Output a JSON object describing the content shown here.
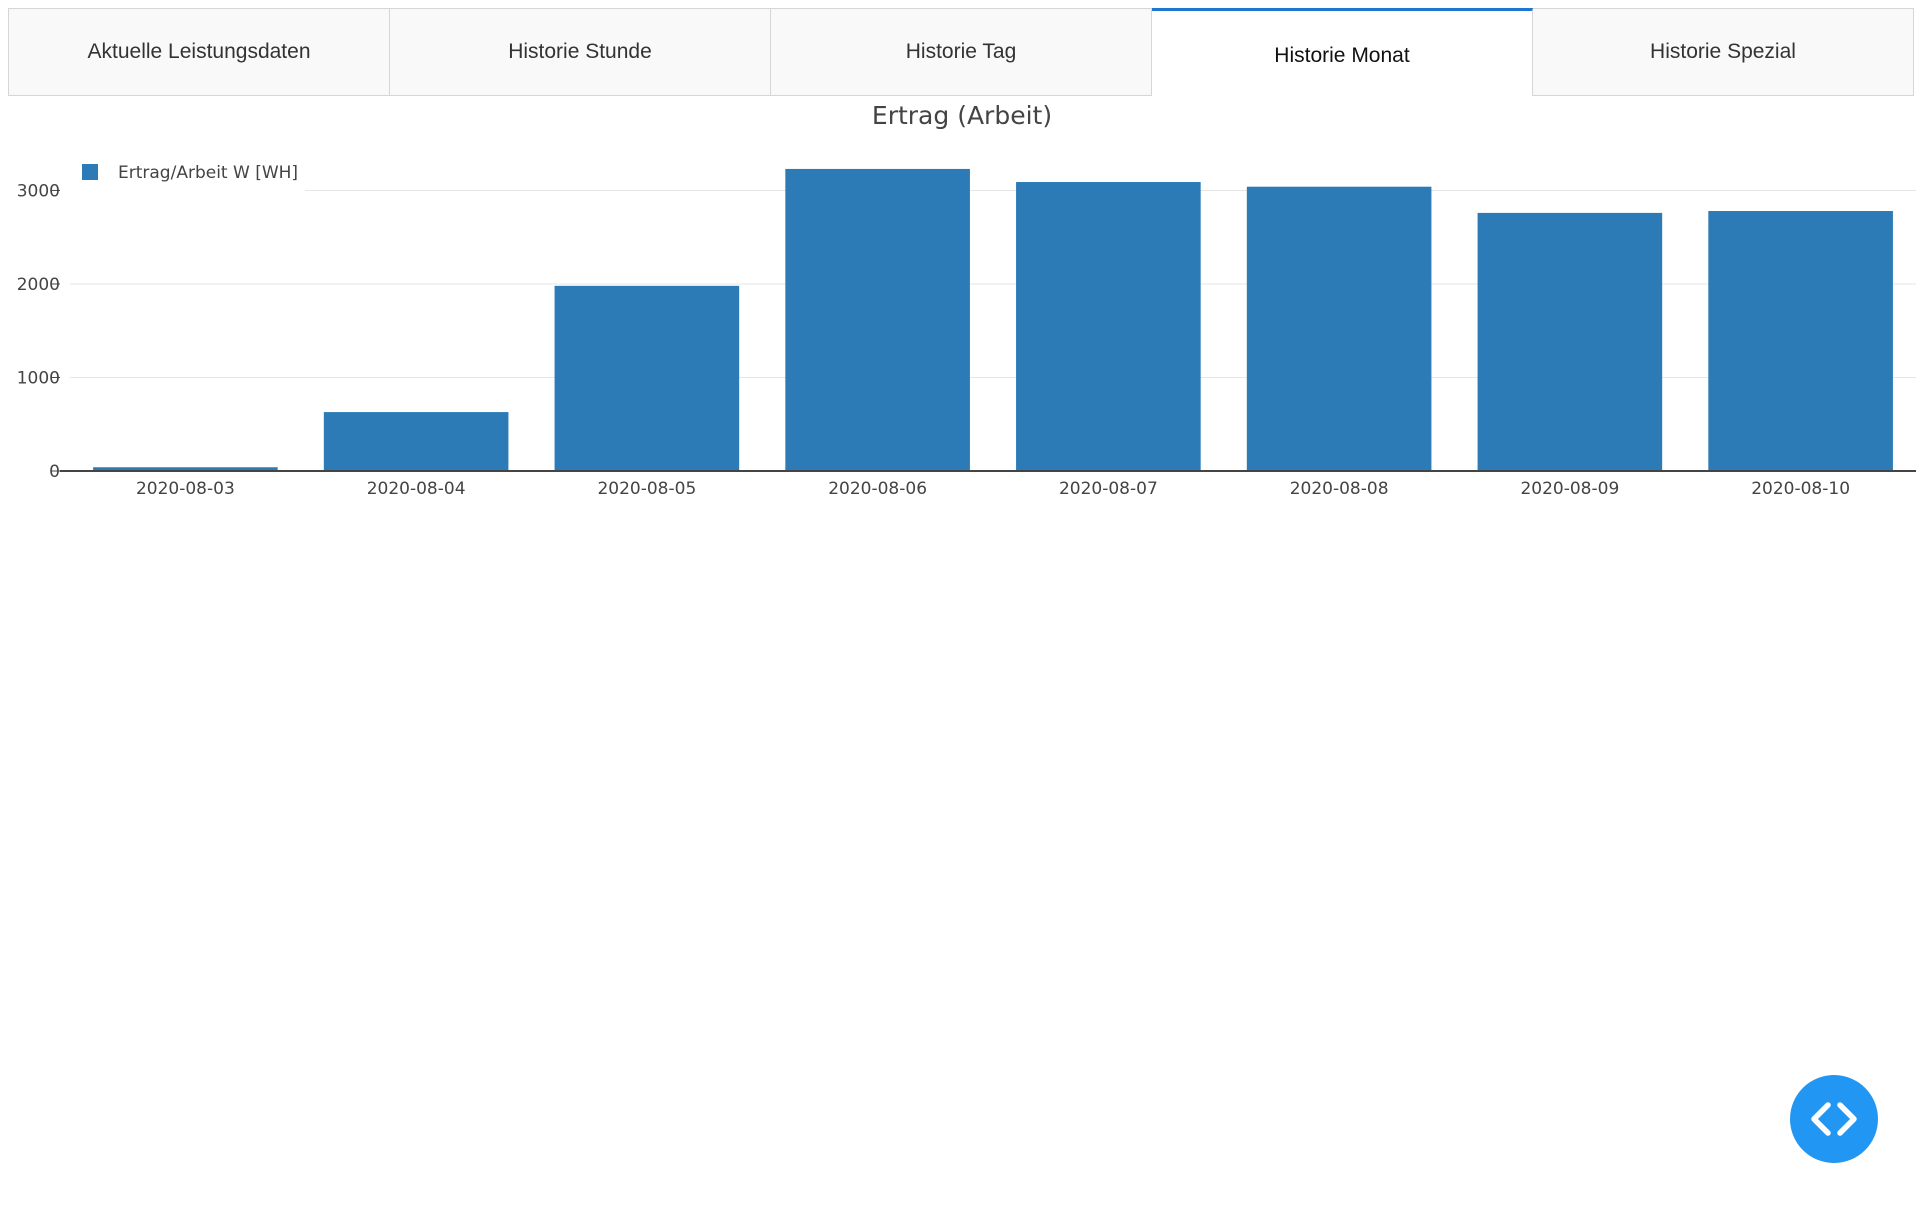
{
  "tabs": [
    {
      "label": "Aktuelle Leistungsdaten",
      "active": false
    },
    {
      "label": "Historie Stunde",
      "active": false
    },
    {
      "label": "Historie Tag",
      "active": false
    },
    {
      "label": "Historie Monat",
      "active": true
    },
    {
      "label": "Historie Spezial",
      "active": false
    }
  ],
  "chart_data": {
    "type": "bar",
    "title": "Ertrag (Arbeit)",
    "xlabel": "",
    "ylabel": "",
    "categories": [
      "2020-08-03",
      "2020-08-04",
      "2020-08-05",
      "2020-08-06",
      "2020-08-07",
      "2020-08-08",
      "2020-08-09",
      "2020-08-10"
    ],
    "series": [
      {
        "name": "Ertrag/Arbeit W [WH]",
        "color": "#2c7bb6",
        "values": [
          40,
          630,
          1980,
          3230,
          3090,
          3040,
          2760,
          2780
        ]
      }
    ],
    "yticks": [
      0,
      1000,
      2000,
      3000
    ],
    "ylim": [
      0,
      3240
    ],
    "grid": true,
    "legend_position": "top-left"
  },
  "fab": {
    "icon": "code-icon"
  }
}
